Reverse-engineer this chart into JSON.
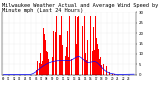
{
  "title_line1": "Milwaukee Weather Actual and Average Wind Speed by Minute mph (Last 24 Hours)",
  "title_fontsize": 3.8,
  "background_color": "#ffffff",
  "plot_bg_color": "#ffffff",
  "grid_color": "#cccccc",
  "bar_color": "#ff0000",
  "line_color": "#0000ff",
  "ylim": [
    0,
    30
  ],
  "ytick_values": [
    0,
    5,
    10,
    15,
    20,
    25,
    30
  ],
  "num_points": 1440,
  "bar_alpha": 1.0,
  "line_width": 0.5,
  "seed": 12345
}
